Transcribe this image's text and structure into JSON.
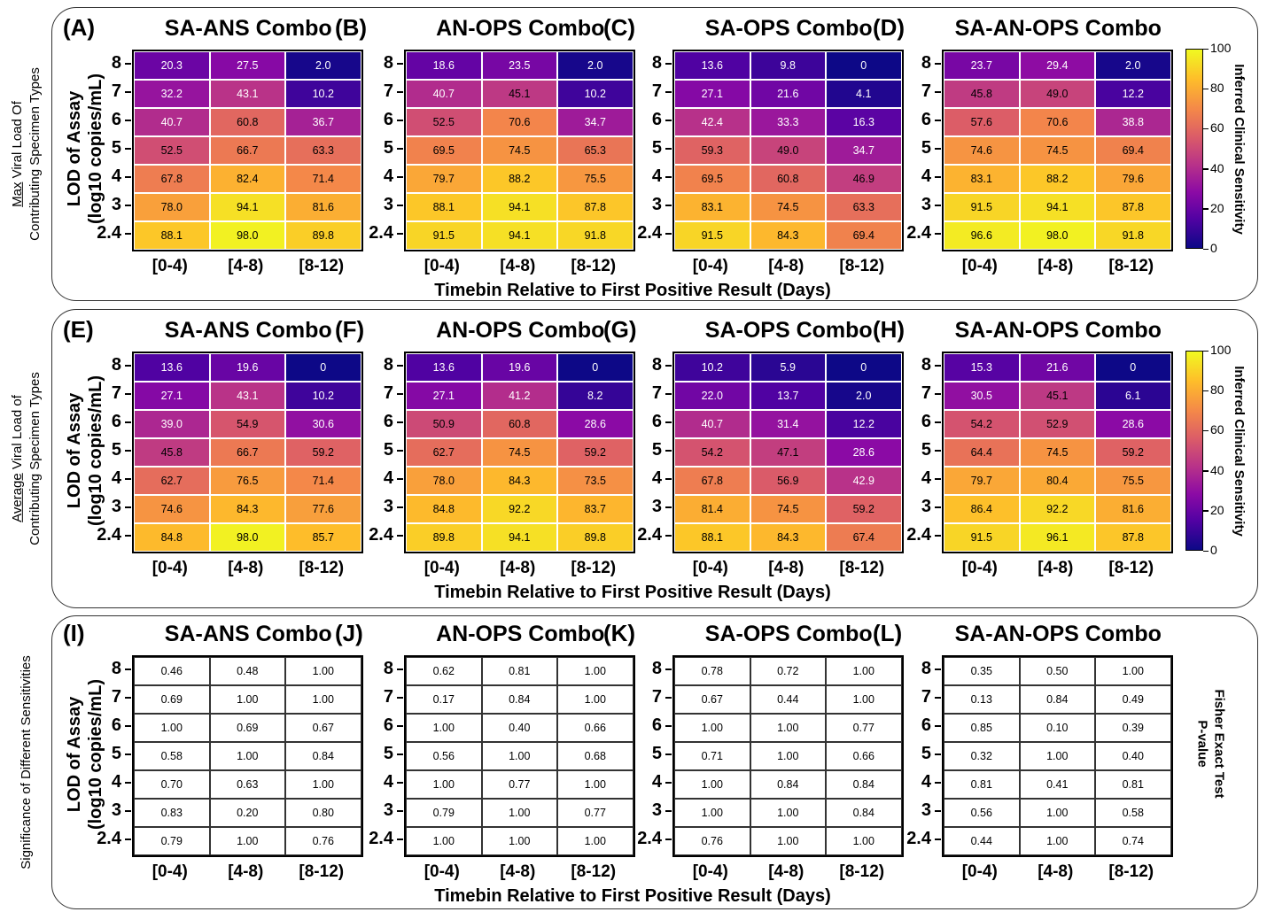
{
  "row_titles": [
    {
      "underlined": "Max",
      "rest_line1": " Viral Load Of",
      "line2": "Contributing Specimen Types"
    },
    {
      "underlined": "Average",
      "rest_line1": " Viral Load of",
      "line2": "Contributing Specimen Types"
    },
    {
      "underlined": "",
      "rest_line1": "Significance of Different Sensitivities",
      "line2": ""
    }
  ],
  "y_axis_title": {
    "line1": "LOD of Assay",
    "line2": "(log10 copies/mL)"
  },
  "x_axis_title": "Timebin Relative to First Positive Result (Days)",
  "y_ticks": [
    "8",
    "7",
    "6",
    "5",
    "4",
    "3",
    "2.4"
  ],
  "x_ticks": [
    "[0-4)",
    "[4-8)",
    "[8-12)"
  ],
  "colorbar": {
    "label": "Inferred Clinical Sensitivity",
    "ticks": [
      "100",
      "80",
      "60",
      "40",
      "20",
      "0"
    ],
    "colormap": "plasma",
    "range": [
      0,
      100
    ],
    "colors": [
      "#0d0887",
      "#5302a3",
      "#8b0aa5",
      "#b83289",
      "#db5c68",
      "#f48849",
      "#febd2a",
      "#f0f921"
    ]
  },
  "fisher_label": {
    "line1": "Fisher Exact Test",
    "line2": "P-value"
  },
  "chart_data": [
    {
      "type": "heatmap",
      "letter": "(A)",
      "title": "SA-ANS Combo",
      "rows": [
        "8",
        "7",
        "6",
        "5",
        "4",
        "3",
        "2.4"
      ],
      "columns": [
        "[0-4)",
        "[4-8)",
        "[8-12)"
      ],
      "values": [
        [
          "20.3",
          "27.5",
          "2.0"
        ],
        [
          "32.2",
          "43.1",
          "10.2"
        ],
        [
          "40.7",
          "60.8",
          "36.7"
        ],
        [
          "52.5",
          "66.7",
          "63.3"
        ],
        [
          "67.8",
          "82.4",
          "71.4"
        ],
        [
          "78.0",
          "94.1",
          "81.6"
        ],
        [
          "88.1",
          "98.0",
          "89.8"
        ]
      ]
    },
    {
      "type": "heatmap",
      "letter": "(B)",
      "title": "AN-OPS Combo",
      "rows": [
        "8",
        "7",
        "6",
        "5",
        "4",
        "3",
        "2.4"
      ],
      "columns": [
        "[0-4)",
        "[4-8)",
        "[8-12)"
      ],
      "values": [
        [
          "18.6",
          "23.5",
          "2.0"
        ],
        [
          "40.7",
          "45.1",
          "10.2"
        ],
        [
          "52.5",
          "70.6",
          "34.7"
        ],
        [
          "69.5",
          "74.5",
          "65.3"
        ],
        [
          "79.7",
          "88.2",
          "75.5"
        ],
        [
          "88.1",
          "94.1",
          "87.8"
        ],
        [
          "91.5",
          "94.1",
          "91.8"
        ]
      ]
    },
    {
      "type": "heatmap",
      "letter": "(C)",
      "title": "SA-OPS Combo",
      "rows": [
        "8",
        "7",
        "6",
        "5",
        "4",
        "3",
        "2.4"
      ],
      "columns": [
        "[0-4)",
        "[4-8)",
        "[8-12)"
      ],
      "values": [
        [
          "13.6",
          "9.8",
          "0"
        ],
        [
          "27.1",
          "21.6",
          "4.1"
        ],
        [
          "42.4",
          "33.3",
          "16.3"
        ],
        [
          "59.3",
          "49.0",
          "34.7"
        ],
        [
          "69.5",
          "60.8",
          "46.9"
        ],
        [
          "83.1",
          "74.5",
          "63.3"
        ],
        [
          "91.5",
          "84.3",
          "69.4"
        ]
      ]
    },
    {
      "type": "heatmap",
      "letter": "(D)",
      "title": "SA-AN-OPS Combo",
      "rows": [
        "8",
        "7",
        "6",
        "5",
        "4",
        "3",
        "2.4"
      ],
      "columns": [
        "[0-4)",
        "[4-8)",
        "[8-12)"
      ],
      "values": [
        [
          "23.7",
          "29.4",
          "2.0"
        ],
        [
          "45.8",
          "49.0",
          "12.2"
        ],
        [
          "57.6",
          "70.6",
          "38.8"
        ],
        [
          "74.6",
          "74.5",
          "69.4"
        ],
        [
          "83.1",
          "88.2",
          "79.6"
        ],
        [
          "91.5",
          "94.1",
          "87.8"
        ],
        [
          "96.6",
          "98.0",
          "91.8"
        ]
      ]
    },
    {
      "type": "heatmap",
      "letter": "(E)",
      "title": "SA-ANS Combo",
      "rows": [
        "8",
        "7",
        "6",
        "5",
        "4",
        "3",
        "2.4"
      ],
      "columns": [
        "[0-4)",
        "[4-8)",
        "[8-12)"
      ],
      "values": [
        [
          "13.6",
          "19.6",
          "0"
        ],
        [
          "27.1",
          "43.1",
          "10.2"
        ],
        [
          "39.0",
          "54.9",
          "30.6"
        ],
        [
          "45.8",
          "66.7",
          "59.2"
        ],
        [
          "62.7",
          "76.5",
          "71.4"
        ],
        [
          "74.6",
          "84.3",
          "77.6"
        ],
        [
          "84.8",
          "98.0",
          "85.7"
        ]
      ]
    },
    {
      "type": "heatmap",
      "letter": "(F)",
      "title": "AN-OPS Combo",
      "rows": [
        "8",
        "7",
        "6",
        "5",
        "4",
        "3",
        "2.4"
      ],
      "columns": [
        "[0-4)",
        "[4-8)",
        "[8-12)"
      ],
      "values": [
        [
          "13.6",
          "19.6",
          "0"
        ],
        [
          "27.1",
          "41.2",
          "8.2"
        ],
        [
          "50.9",
          "60.8",
          "28.6"
        ],
        [
          "62.7",
          "74.5",
          "59.2"
        ],
        [
          "78.0",
          "84.3",
          "73.5"
        ],
        [
          "84.8",
          "92.2",
          "83.7"
        ],
        [
          "89.8",
          "94.1",
          "89.8"
        ]
      ]
    },
    {
      "type": "heatmap",
      "letter": "(G)",
      "title": "SA-OPS Combo",
      "rows": [
        "8",
        "7",
        "6",
        "5",
        "4",
        "3",
        "2.4"
      ],
      "columns": [
        "[0-4)",
        "[4-8)",
        "[8-12)"
      ],
      "values": [
        [
          "10.2",
          "5.9",
          "0"
        ],
        [
          "22.0",
          "13.7",
          "2.0"
        ],
        [
          "40.7",
          "31.4",
          "12.2"
        ],
        [
          "54.2",
          "47.1",
          "28.6"
        ],
        [
          "67.8",
          "56.9",
          "42.9"
        ],
        [
          "81.4",
          "74.5",
          "59.2"
        ],
        [
          "88.1",
          "84.3",
          "67.4"
        ]
      ]
    },
    {
      "type": "heatmap",
      "letter": "(H)",
      "title": "SA-AN-OPS Combo",
      "rows": [
        "8",
        "7",
        "6",
        "5",
        "4",
        "3",
        "2.4"
      ],
      "columns": [
        "[0-4)",
        "[4-8)",
        "[8-12)"
      ],
      "values": [
        [
          "15.3",
          "21.6",
          "0"
        ],
        [
          "30.5",
          "45.1",
          "6.1"
        ],
        [
          "54.2",
          "52.9",
          "28.6"
        ],
        [
          "64.4",
          "74.5",
          "59.2"
        ],
        [
          "79.7",
          "80.4",
          "75.5"
        ],
        [
          "86.4",
          "92.2",
          "81.6"
        ],
        [
          "91.5",
          "96.1",
          "87.8"
        ]
      ]
    },
    {
      "type": "table",
      "letter": "(I)",
      "title": "SA-ANS Combo",
      "rows": [
        "8",
        "7",
        "6",
        "5",
        "4",
        "3",
        "2.4"
      ],
      "columns": [
        "[0-4)",
        "[4-8)",
        "[8-12)"
      ],
      "values": [
        [
          "0.46",
          "0.48",
          "1.00"
        ],
        [
          "0.69",
          "1.00",
          "1.00"
        ],
        [
          "1.00",
          "0.69",
          "0.67"
        ],
        [
          "0.58",
          "1.00",
          "0.84"
        ],
        [
          "0.70",
          "0.63",
          "1.00"
        ],
        [
          "0.83",
          "0.20",
          "0.80"
        ],
        [
          "0.79",
          "1.00",
          "0.76"
        ]
      ]
    },
    {
      "type": "table",
      "letter": "(J)",
      "title": "AN-OPS Combo",
      "rows": [
        "8",
        "7",
        "6",
        "5",
        "4",
        "3",
        "2.4"
      ],
      "columns": [
        "[0-4)",
        "[4-8)",
        "[8-12)"
      ],
      "values": [
        [
          "0.62",
          "0.81",
          "1.00"
        ],
        [
          "0.17",
          "0.84",
          "1.00"
        ],
        [
          "1.00",
          "0.40",
          "0.66"
        ],
        [
          "0.56",
          "1.00",
          "0.68"
        ],
        [
          "1.00",
          "0.77",
          "1.00"
        ],
        [
          "0.79",
          "1.00",
          "0.77"
        ],
        [
          "1.00",
          "1.00",
          "1.00"
        ]
      ]
    },
    {
      "type": "table",
      "letter": "(K)",
      "title": "SA-OPS Combo",
      "rows": [
        "8",
        "7",
        "6",
        "5",
        "4",
        "3",
        "2.4"
      ],
      "columns": [
        "[0-4)",
        "[4-8)",
        "[8-12)"
      ],
      "values": [
        [
          "0.78",
          "0.72",
          "1.00"
        ],
        [
          "0.67",
          "0.44",
          "1.00"
        ],
        [
          "1.00",
          "1.00",
          "0.77"
        ],
        [
          "0.71",
          "1.00",
          "0.66"
        ],
        [
          "1.00",
          "0.84",
          "0.84"
        ],
        [
          "1.00",
          "1.00",
          "0.84"
        ],
        [
          "0.76",
          "1.00",
          "1.00"
        ]
      ]
    },
    {
      "type": "table",
      "letter": "(L)",
      "title": "SA-AN-OPS Combo",
      "rows": [
        "8",
        "7",
        "6",
        "5",
        "4",
        "3",
        "2.4"
      ],
      "columns": [
        "[0-4)",
        "[4-8)",
        "[8-12)"
      ],
      "values": [
        [
          "0.35",
          "0.50",
          "1.00"
        ],
        [
          "0.13",
          "0.84",
          "0.49"
        ],
        [
          "0.85",
          "0.10",
          "0.39"
        ],
        [
          "0.32",
          "1.00",
          "0.40"
        ],
        [
          "0.81",
          "0.41",
          "0.81"
        ],
        [
          "0.56",
          "1.00",
          "0.58"
        ],
        [
          "0.44",
          "1.00",
          "0.74"
        ]
      ]
    }
  ]
}
